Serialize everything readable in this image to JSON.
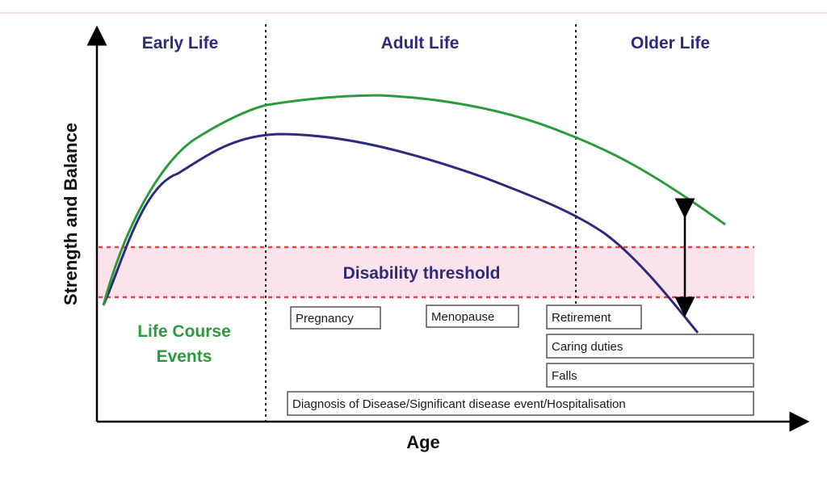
{
  "phases": [
    "Early Life",
    "Adult Life",
    "Older Life"
  ],
  "y_axis_label": "Strength and Balance",
  "x_axis_label": "Age",
  "threshold_label": "Disability threshold",
  "life_course_label_line1": "Life Course",
  "life_course_label_line2": "Events",
  "events": [
    "Pregnancy",
    "Menopause",
    "Retirement",
    "Caring duties",
    "Falls",
    "Diagnosis of Disease/Significant disease event/Hospitalisation"
  ],
  "colors": {
    "green_curve": "#2e9a3e",
    "blue_curve": "#2e2a7e",
    "threshold_band": "#fbe3ec",
    "threshold_line": "#e0424f"
  }
}
